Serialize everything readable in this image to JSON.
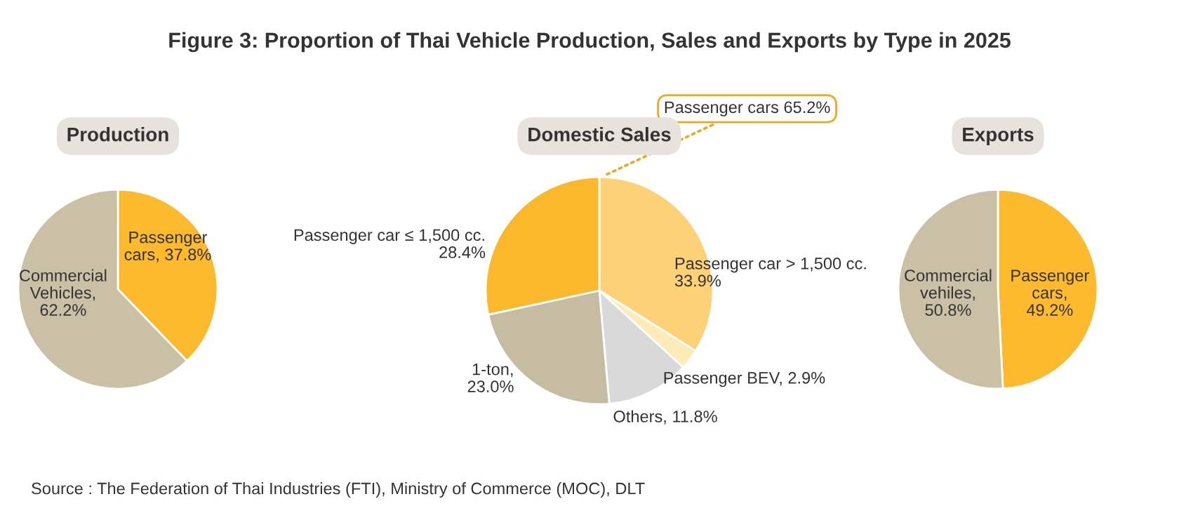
{
  "chart_data": [
    {
      "type": "pie",
      "title": "Production",
      "categories": [
        "Passenger\ncars, 37.8%",
        "Commercial\nVehicles,\n62.2%"
      ],
      "values": [
        37.8,
        62.2
      ],
      "colors": [
        "#fdba2c",
        "#c9c0a6"
      ],
      "annotations": [
        "Figure 3: Proportion of Thai Vehicle Production, Sales and Exports by Type in 2025",
        "Source : The Federation of Thai Industries (FTI), Ministry of Commerce (MOC), DLT"
      ]
    },
    {
      "type": "pie",
      "title": "Domestic Sales",
      "categories": [
        "Passenger car > 1,500 cc.\n33.9%",
        "Passenger BEV, 2.9%",
        "Others, 11.8%",
        "1-ton,\n23.0%",
        "Passenger car ≤ 1,500 cc.\n28.4%"
      ],
      "values": [
        33.9,
        2.9,
        11.8,
        23.0,
        28.4
      ],
      "colors": [
        "#fdd176",
        "#feebb8",
        "#d9d9d9",
        "#c5bca2",
        "#fbb82b"
      ],
      "annotations": [
        "Passenger cars 65.2%"
      ]
    },
    {
      "type": "pie",
      "title": "Exports",
      "categories": [
        "Passenger\ncars,\n49.2%",
        "Commercial\nvehiles,\n50.8%"
      ],
      "values": [
        49.2,
        50.8
      ],
      "colors": [
        "#fdba2c",
        "#c9c0a6"
      ]
    }
  ]
}
